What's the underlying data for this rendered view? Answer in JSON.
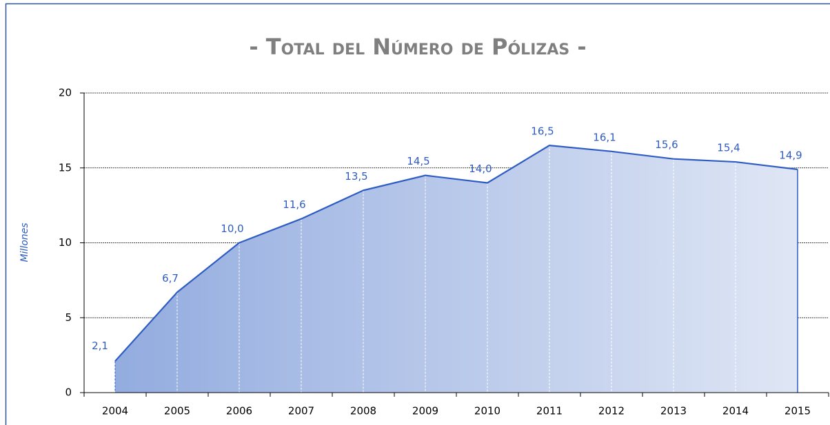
{
  "chart_data": {
    "type": "area",
    "title": "- Total del Número de Pólizas -",
    "ylabel": "Millones",
    "categories": [
      "2004",
      "2005",
      "2006",
      "2007",
      "2008",
      "2009",
      "2010",
      "2011",
      "2012",
      "2013",
      "2014",
      "2015"
    ],
    "values": [
      2.1,
      6.7,
      10.0,
      11.6,
      13.5,
      14.5,
      14.0,
      16.5,
      16.1,
      15.6,
      15.4,
      14.9
    ],
    "value_labels": [
      "2,1",
      "6,7",
      "10,0",
      "11,6",
      "13,5",
      "14,5",
      "14,0",
      "16,5",
      "16,1",
      "15,6",
      "15,4",
      "14,9"
    ],
    "color": "#2e5cc2",
    "ylim": [
      0,
      20
    ],
    "yticks": [
      0,
      5,
      10,
      15,
      20
    ],
    "grid": true
  }
}
